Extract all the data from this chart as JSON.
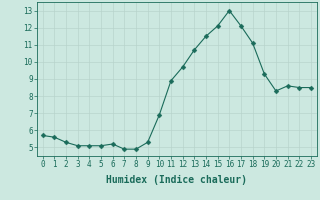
{
  "x": [
    0,
    1,
    2,
    3,
    4,
    5,
    6,
    7,
    8,
    9,
    10,
    11,
    12,
    13,
    14,
    15,
    16,
    17,
    18,
    19,
    20,
    21,
    22,
    23
  ],
  "y": [
    5.7,
    5.6,
    5.3,
    5.1,
    5.1,
    5.1,
    5.2,
    4.9,
    4.9,
    5.3,
    6.9,
    8.9,
    9.7,
    10.7,
    11.5,
    12.1,
    13.0,
    12.1,
    11.1,
    9.3,
    8.3,
    8.6,
    8.5,
    8.5
  ],
  "line_color": "#1a6b5a",
  "marker": "D",
  "marker_size": 2.5,
  "bg_color": "#cce8e0",
  "grid_color": "#b8d4cc",
  "xlabel": "Humidex (Indice chaleur)",
  "xlim": [
    -0.5,
    23.5
  ],
  "ylim": [
    4.5,
    13.5
  ],
  "yticks": [
    5,
    6,
    7,
    8,
    9,
    10,
    11,
    12,
    13
  ],
  "xticks": [
    0,
    1,
    2,
    3,
    4,
    5,
    6,
    7,
    8,
    9,
    10,
    11,
    12,
    13,
    14,
    15,
    16,
    17,
    18,
    19,
    20,
    21,
    22,
    23
  ],
  "axis_color": "#1a6b5a",
  "tick_fontsize": 5.5,
  "label_fontsize": 7.0
}
